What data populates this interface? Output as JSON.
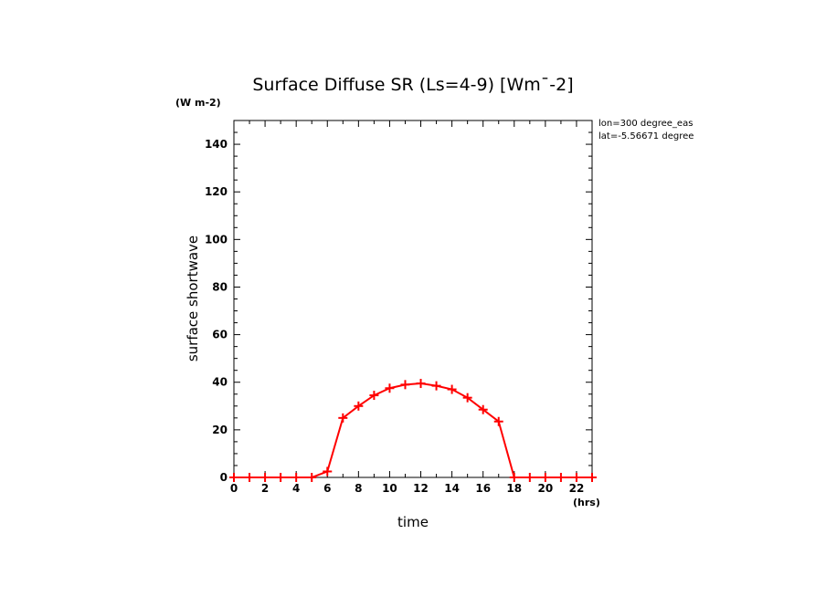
{
  "chart_data": {
    "type": "line",
    "title": "Surface Diffuse SR (Ls=4-9) [Wm¯-2]",
    "y_unit": "(W m-2)",
    "x_unit": "(hrs)",
    "xlabel": "time",
    "ylabel": "surface shortwave",
    "annotations": [
      "lon=300 degree_eas",
      "lat=-5.56671 degree"
    ],
    "xlim": [
      0,
      23
    ],
    "ylim": [
      0,
      150
    ],
    "x_ticks": [
      0,
      2,
      4,
      6,
      8,
      10,
      12,
      14,
      16,
      18,
      20,
      22
    ],
    "x_tick_labels": [
      "0",
      "2",
      "4",
      "6",
      "8",
      "10",
      "12",
      "14",
      "16",
      "18",
      "20",
      "22"
    ],
    "y_ticks": [
      0,
      20,
      40,
      60,
      80,
      100,
      120,
      140
    ],
    "y_tick_labels": [
      "0",
      "20",
      "40",
      "60",
      "80",
      "100",
      "120",
      "140"
    ],
    "series": [
      {
        "name": "surface shortwave",
        "color": "#ff0000",
        "x": [
          0,
          1,
          2,
          3,
          4,
          5,
          6,
          7,
          8,
          9,
          10,
          11,
          12,
          13,
          14,
          15,
          16,
          17,
          18,
          19,
          20,
          21,
          22,
          23
        ],
        "values": [
          0,
          0,
          0,
          0,
          0,
          0,
          2.5,
          25,
          30,
          34.5,
          37.5,
          39,
          39.5,
          38.5,
          37,
          33.5,
          28.5,
          23.5,
          0,
          0,
          0,
          0,
          0,
          0
        ]
      }
    ]
  }
}
